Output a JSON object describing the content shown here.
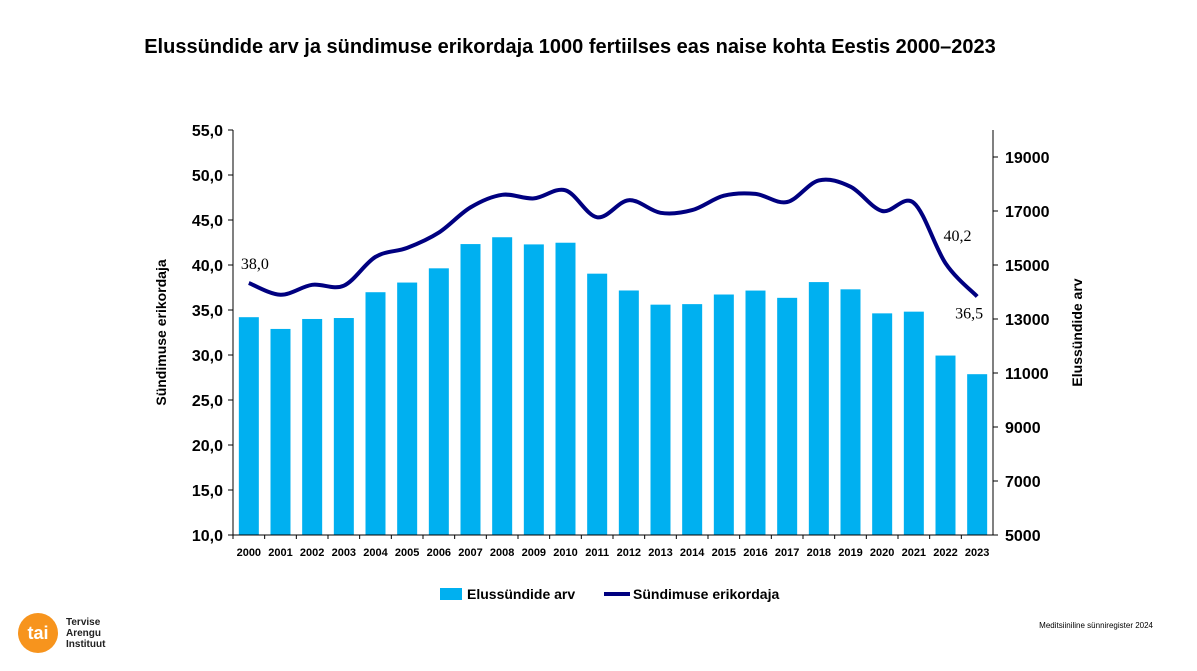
{
  "chart_data": {
    "type": "bar+line",
    "title": "Elussündide arv ja sündimuse erikordaja 1000 fertiilses eas naise kohta Eestis 2000–2023",
    "categories": [
      "2000",
      "2001",
      "2002",
      "2003",
      "2004",
      "2005",
      "2006",
      "2007",
      "2008",
      "2009",
      "2010",
      "2011",
      "2012",
      "2013",
      "2014",
      "2015",
      "2016",
      "2017",
      "2018",
      "2019",
      "2020",
      "2021",
      "2022",
      "2023"
    ],
    "series": [
      {
        "name": "Elussündide arv",
        "type": "bar",
        "axis": "right",
        "color": "#00b0f0",
        "values": [
          13067,
          12632,
          13001,
          13036,
          13992,
          14350,
          14877,
          15775,
          16028,
          15763,
          15825,
          14679,
          14056,
          13531,
          13551,
          13907,
          14053,
          13784,
          14367,
          14099,
          13209,
          13272,
          11646,
          10956
        ]
      },
      {
        "name": "Sündimuse erikordaja",
        "type": "line",
        "axis": "left",
        "color": "#000080",
        "values": [
          38.0,
          36.7,
          37.8,
          37.7,
          40.9,
          41.9,
          43.6,
          46.4,
          47.8,
          47.4,
          48.3,
          45.3,
          47.2,
          45.8,
          46.1,
          47.7,
          47.9,
          47.0,
          49.4,
          48.7,
          46.0,
          46.9,
          40.2,
          36.5
        ]
      }
    ],
    "data_labels": [
      {
        "index": 0,
        "text": "38,0"
      },
      {
        "index": 22,
        "text": "40,2"
      },
      {
        "index": 23,
        "text": "36,5"
      }
    ],
    "ylabel_left": "Sündimuse erikordaja",
    "ylabel_right": "Elussündide arv",
    "ylim_left": [
      10,
      55
    ],
    "ylim_right": [
      5000,
      20000
    ],
    "yticks_left": [
      "10,0",
      "15,0",
      "20,0",
      "25,0",
      "30,0",
      "35,0",
      "40,0",
      "45,0",
      "50,0",
      "55,0"
    ],
    "yticks_right": [
      "5000",
      "7000",
      "9000",
      "11000",
      "13000",
      "15000",
      "17000",
      "19000"
    ],
    "legend": "bottom",
    "grid": false
  },
  "source": "Meditsiiniline sünniregister 2024",
  "logo": {
    "mark": "tai",
    "text": [
      "Tervise",
      "Arengu",
      "Instituut"
    ]
  }
}
